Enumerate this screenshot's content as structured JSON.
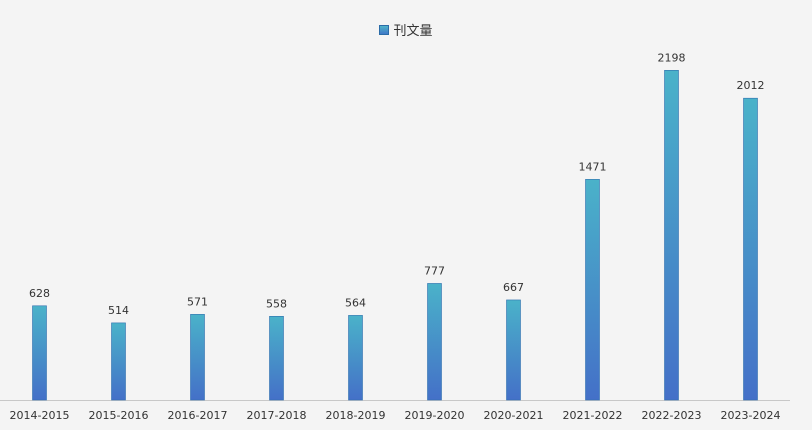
{
  "chart_data": {
    "type": "bar",
    "categories": [
      "2014-2015",
      "2015-2016",
      "2016-2017",
      "2017-2018",
      "2018-2019",
      "2019-2020",
      "2020-2021",
      "2021-2022",
      "2022-2023",
      "2023-2024"
    ],
    "series": [
      {
        "name": "刊文量",
        "values": [
          628,
          514,
          571,
          558,
          564,
          777,
          667,
          1471,
          2198,
          2012
        ]
      }
    ],
    "ylim": [
      0,
      2400
    ],
    "grid": false,
    "legend": "top-center",
    "colors": {
      "bar_top": "#4ab2c9",
      "bar_bottom": "#4470c8",
      "bar_edge": "#2f6fae",
      "axis": "#c8c8c8"
    }
  }
}
